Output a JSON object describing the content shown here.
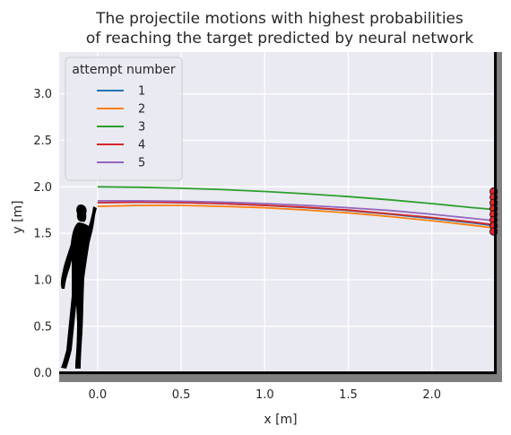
{
  "chart_data": {
    "type": "line",
    "title": [
      "The projectile motions with highest probabilities",
      "of reaching the target predicted by neural network"
    ],
    "xlabel": "x [m]",
    "ylabel": "y [m]",
    "xlim": [
      -0.23,
      2.42
    ],
    "ylim": [
      -0.1,
      3.45
    ],
    "xticks": [
      {
        "value": 0.0,
        "label": "0.0"
      },
      {
        "value": 0.5,
        "label": "0.5"
      },
      {
        "value": 1.0,
        "label": "1.0"
      },
      {
        "value": 1.5,
        "label": "1.5"
      },
      {
        "value": 2.0,
        "label": "2.0"
      }
    ],
    "yticks": [
      {
        "value": 0.0,
        "label": "0.0"
      },
      {
        "value": 0.5,
        "label": "0.5"
      },
      {
        "value": 1.0,
        "label": "1.0"
      },
      {
        "value": 1.5,
        "label": "1.5"
      },
      {
        "value": 2.0,
        "label": "2.0"
      },
      {
        "value": 2.5,
        "label": "2.5"
      },
      {
        "value": 3.0,
        "label": "3.0"
      }
    ],
    "grid": true,
    "legend": {
      "title": "attempt number",
      "placement": "top-left"
    },
    "series": [
      {
        "name": "1",
        "color": "#1f77b4",
        "x": [
          0.0,
          0.25,
          0.5,
          0.75,
          1.0,
          1.25,
          1.5,
          1.75,
          2.0,
          2.25,
          2.38
        ],
        "y": [
          1.83,
          1.835,
          1.83,
          1.82,
          1.8,
          1.775,
          1.745,
          1.705,
          1.66,
          1.61,
          1.58
        ]
      },
      {
        "name": "2",
        "color": "#ff7f0e",
        "x": [
          0.0,
          0.25,
          0.5,
          0.75,
          1.0,
          1.25,
          1.5,
          1.75,
          2.0,
          2.25,
          2.38
        ],
        "y": [
          1.79,
          1.8,
          1.8,
          1.79,
          1.775,
          1.75,
          1.72,
          1.68,
          1.635,
          1.585,
          1.555
        ]
      },
      {
        "name": "3",
        "color": "#2ca02c",
        "x": [
          0.0,
          0.25,
          0.5,
          0.75,
          1.0,
          1.25,
          1.5,
          1.75,
          2.0,
          2.25,
          2.38
        ],
        "y": [
          2.0,
          1.995,
          1.985,
          1.97,
          1.95,
          1.925,
          1.895,
          1.86,
          1.82,
          1.775,
          1.755
        ]
      },
      {
        "name": "4",
        "color": "#d62728",
        "x": [
          0.0,
          0.25,
          0.5,
          0.75,
          1.0,
          1.25,
          1.5,
          1.75,
          2.0,
          2.25,
          2.38
        ],
        "y": [
          1.83,
          1.835,
          1.83,
          1.82,
          1.8,
          1.78,
          1.75,
          1.71,
          1.67,
          1.62,
          1.59
        ]
      },
      {
        "name": "5",
        "color": "#9467bd",
        "x": [
          0.0,
          0.25,
          0.5,
          0.75,
          1.0,
          1.25,
          1.5,
          1.75,
          2.0,
          2.25,
          2.38
        ],
        "y": [
          1.85,
          1.85,
          1.845,
          1.835,
          1.82,
          1.8,
          1.775,
          1.745,
          1.705,
          1.66,
          1.635
        ]
      }
    ],
    "target": {
      "x": 2.37,
      "y_min": 1.52,
      "y_max": 1.95,
      "color": "#e8262b"
    },
    "wall": {
      "x": 2.38,
      "color": "#000000"
    },
    "floor": {
      "y": 0.0,
      "color": "#000000"
    },
    "figure_silhouette_icon": "person-throwing-icon"
  }
}
